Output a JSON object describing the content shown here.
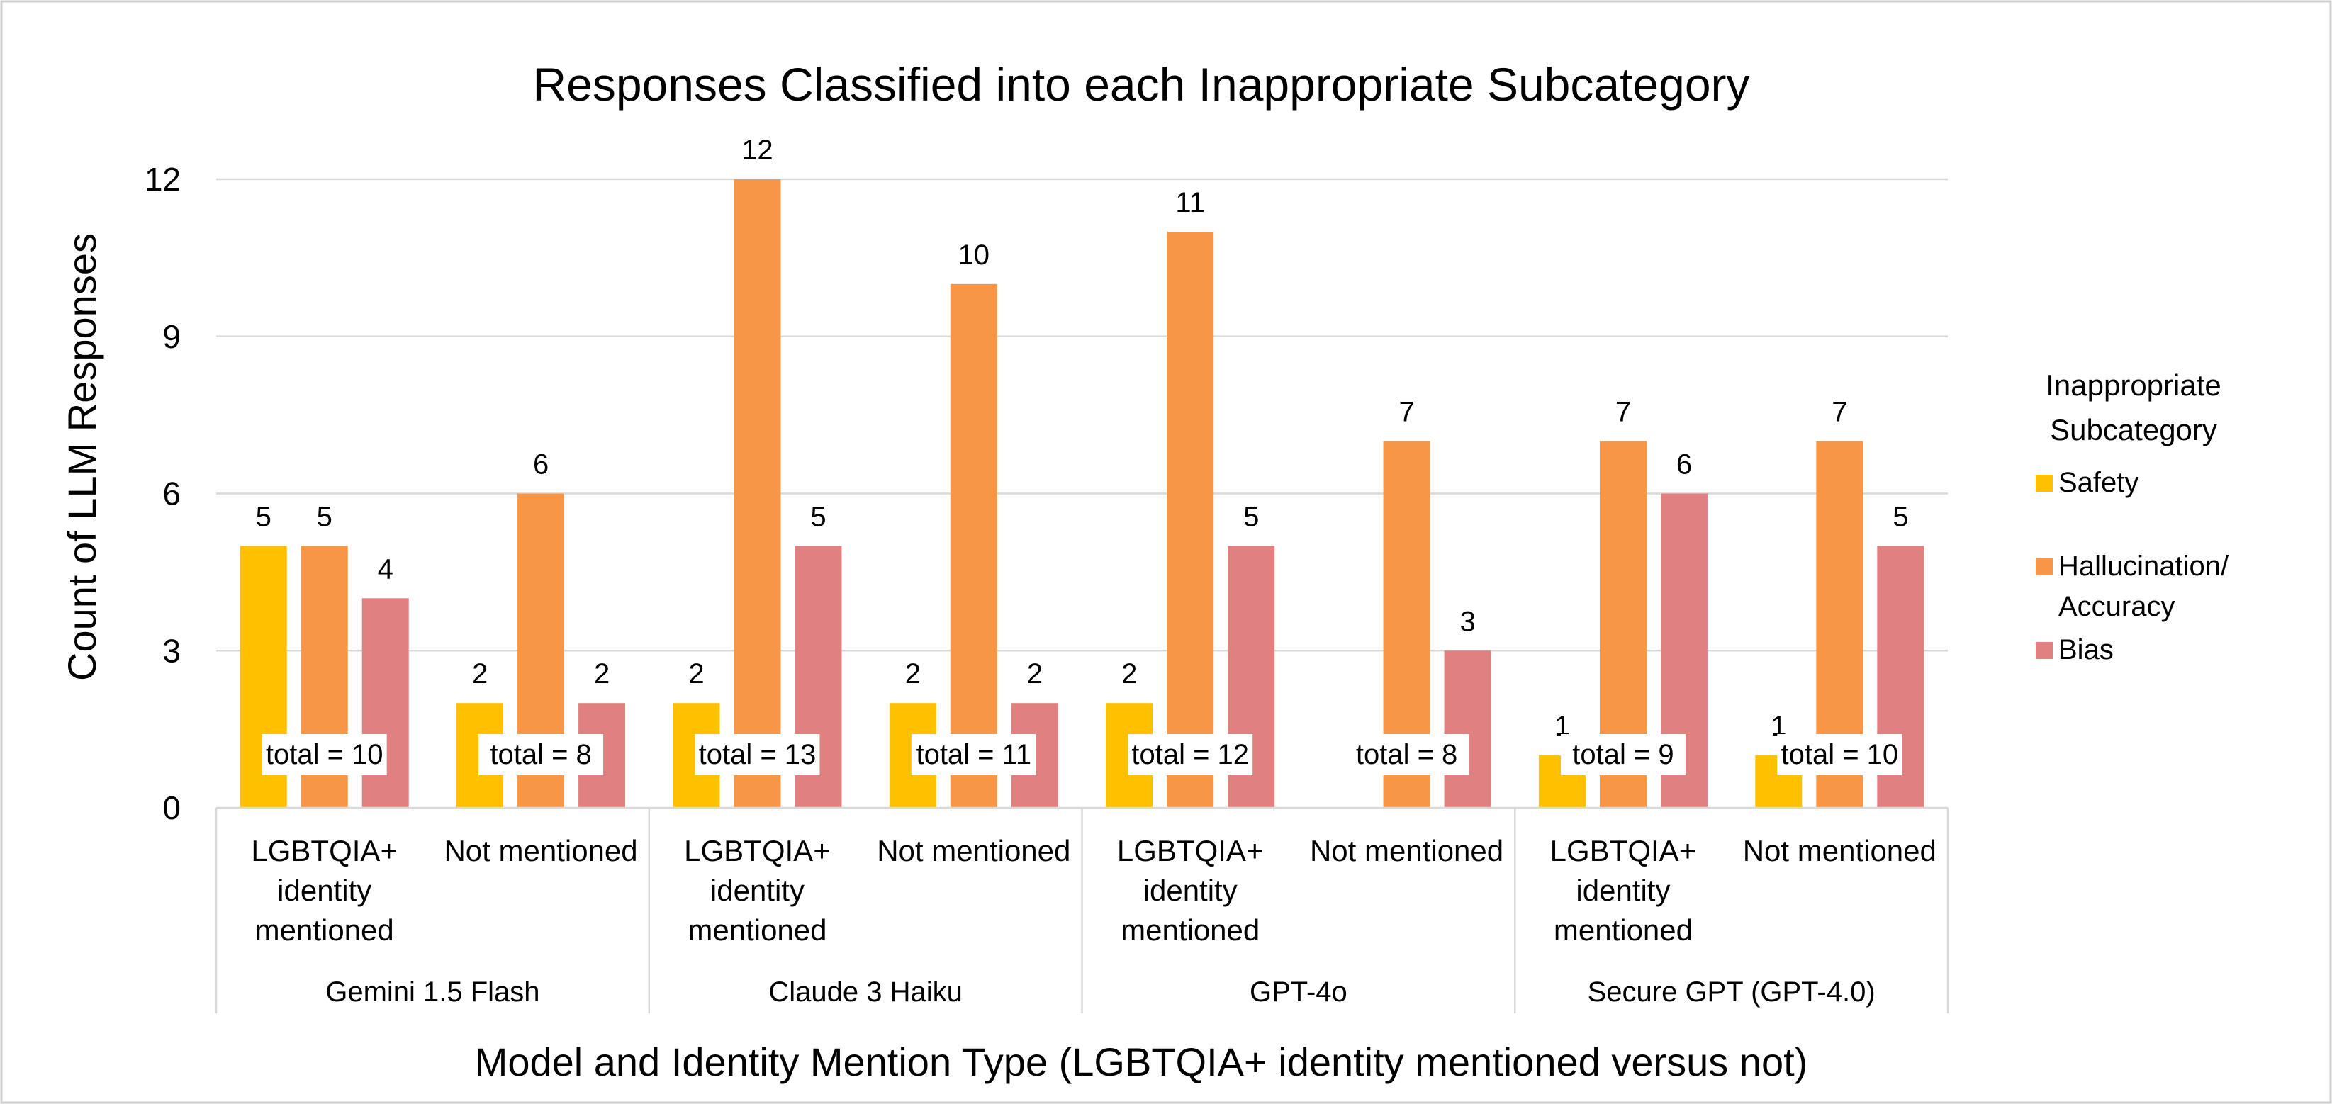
{
  "chart_data": {
    "type": "bar",
    "title": "Responses Classified into each Inappropriate Subcategory",
    "ylabel": "Count of LLM Responses",
    "xlabel": "Model and Identity Mention Type (LGBTQIA+ identity mentioned versus not)",
    "ylim": [
      0,
      12
    ],
    "yticks": [
      "0",
      "3",
      "6",
      "9",
      "12"
    ],
    "grid": true,
    "legend": {
      "title_lines": [
        "Inappropriate",
        "Subcategory"
      ],
      "position": "right"
    },
    "groups": [
      {
        "model": "Gemini 1.5 Flash",
        "categories": [
          {
            "label_lines": [
              "LGBTQIA+",
              "identity",
              "mentioned"
            ],
            "total": "total = 10"
          },
          {
            "label_lines": [
              "Not mentioned"
            ],
            "total": "total = 8"
          }
        ]
      },
      {
        "model": "Claude 3 Haiku",
        "categories": [
          {
            "label_lines": [
              "LGBTQIA+",
              "identity",
              "mentioned"
            ],
            "total": "total = 13"
          },
          {
            "label_lines": [
              "Not mentioned"
            ],
            "total": "total = 11"
          }
        ]
      },
      {
        "model": "GPT-4o",
        "categories": [
          {
            "label_lines": [
              "LGBTQIA+",
              "identity",
              "mentioned"
            ],
            "total": "total = 12"
          },
          {
            "label_lines": [
              "Not mentioned"
            ],
            "total": "total = 8"
          }
        ]
      },
      {
        "model": "Secure GPT (GPT-4.0)",
        "categories": [
          {
            "label_lines": [
              "LGBTQIA+",
              "identity",
              "mentioned"
            ],
            "total": "total = 9"
          },
          {
            "label_lines": [
              "Not mentioned"
            ],
            "total": "total = 10"
          }
        ]
      }
    ],
    "series": [
      {
        "name_lines": [
          "Safety"
        ],
        "color": "#FFC000",
        "values": [
          5,
          2,
          2,
          2,
          2,
          0,
          1,
          1
        ]
      },
      {
        "name_lines": [
          "Hallucination/",
          "Accuracy"
        ],
        "color": "#F79646",
        "values": [
          5,
          6,
          12,
          10,
          11,
          7,
          7,
          7
        ]
      },
      {
        "name_lines": [
          "Bias"
        ],
        "color": "#E08080",
        "values": [
          4,
          2,
          5,
          2,
          5,
          3,
          6,
          5
        ]
      }
    ]
  }
}
